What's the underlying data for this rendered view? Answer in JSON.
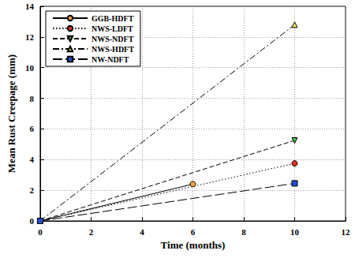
{
  "chart_data": {
    "type": "line",
    "x_label": "Time (months)",
    "y_label": "Mean Rust Creepage (mm)",
    "xlim": [
      0,
      12
    ],
    "xticks": [
      0,
      2,
      4,
      6,
      8,
      10,
      12
    ],
    "ylim": [
      0,
      14
    ],
    "yticks": [
      0,
      2,
      4,
      6,
      8,
      10,
      12,
      14
    ],
    "grid": true,
    "legend": "upper left",
    "series": [
      {
        "name": "GGB-HDFT",
        "color": "#f5a040",
        "marker": "circle",
        "line_style": "solid",
        "x": [
          0,
          6
        ],
        "values": [
          0,
          2.4
        ]
      },
      {
        "name": "NWS-LDFT",
        "color": "#e03020",
        "marker": "circle",
        "line_style": "dotted",
        "x": [
          0,
          10
        ],
        "values": [
          0,
          3.75
        ]
      },
      {
        "name": "NWS-NDFT",
        "color": "#40c040",
        "marker": "triangle-down",
        "line_style": "dashed",
        "x": [
          0,
          10
        ],
        "values": [
          0,
          5.25
        ]
      },
      {
        "name": "NWS-HDFT",
        "color": "#f0f050",
        "marker": "triangle",
        "line_style": "dashdot",
        "x": [
          0,
          10
        ],
        "values": [
          0,
          12.8
        ]
      },
      {
        "name": "NW-NDFT",
        "color": "#2050d0",
        "marker": "square",
        "line_style": "longdash",
        "x": [
          0,
          10
        ],
        "values": [
          0,
          2.45
        ]
      }
    ]
  }
}
